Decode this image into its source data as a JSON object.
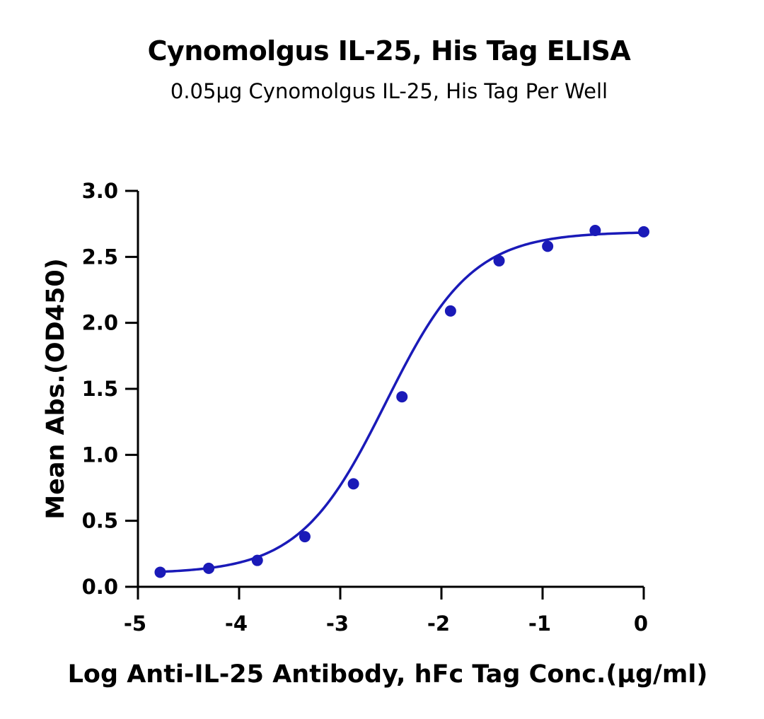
{
  "chart_data": {
    "type": "scatter",
    "title": "Cynomolgus IL-25, His Tag ELISA",
    "subtitle": "0.05μg Cynomolgus IL-25, His Tag Per Well",
    "xlabel": "Log Anti-IL-25 Antibody, hFc Tag Conc.(μg/ml)",
    "ylabel": "Mean Abs.(OD450)",
    "xlim": [
      -5,
      0
    ],
    "ylim": [
      0,
      3
    ],
    "x_ticks": [
      -5,
      -4,
      -3,
      -2,
      -1,
      0
    ],
    "x_tick_labels": [
      "-5",
      "-4",
      "-3",
      "-2",
      "-1",
      "0"
    ],
    "y_ticks": [
      0,
      0.5,
      1,
      1.5,
      2,
      2.5,
      3
    ],
    "y_tick_labels": [
      "0.0",
      "0.5",
      "1.0",
      "1.5",
      "2.0",
      "2.5",
      "3.0"
    ],
    "grid": false,
    "legend": "none",
    "series": [
      {
        "x": [
          -4.78,
          -4.3,
          -3.82,
          -3.35,
          -2.87,
          -2.39,
          -1.91,
          -1.43,
          -0.95,
          -0.48,
          0.0
        ],
        "y": [
          0.11,
          0.14,
          0.2,
          0.38,
          0.78,
          1.44,
          2.09,
          2.47,
          2.58,
          2.7,
          2.69
        ],
        "color": "#1a1ab8"
      }
    ],
    "fit_curve": {
      "model": "4PL",
      "bottom": 0.1,
      "top": 2.69,
      "log_ec50": -2.55,
      "hill_slope": 1.02,
      "color": "#1a1ab8"
    }
  }
}
